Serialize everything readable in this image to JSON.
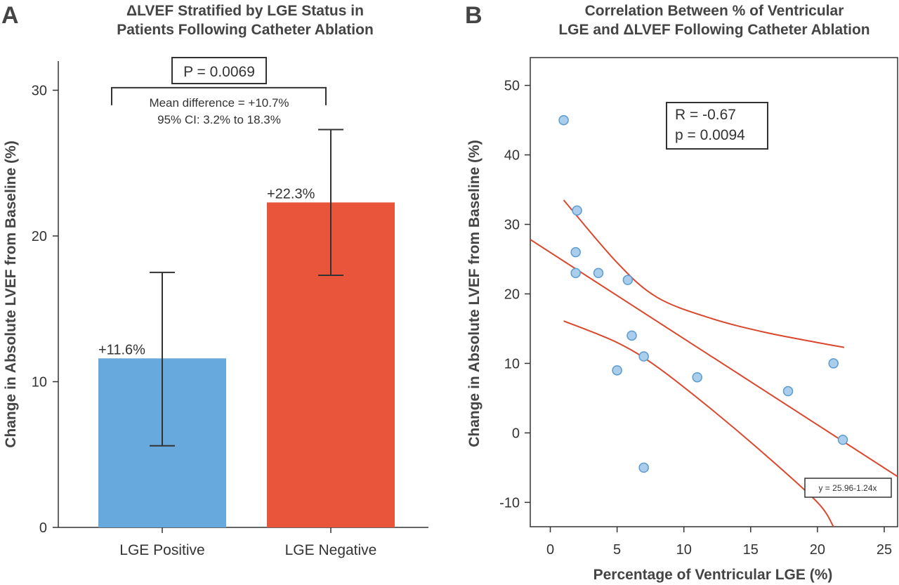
{
  "chart_data": [
    {
      "panel": "A",
      "type": "bar",
      "title": [
        "ΔLVEF Stratified by LGE Status in",
        "Patients Following Catheter Ablation"
      ],
      "ylabel": "Change in Absolute LVEF from Baseline (%)",
      "xlabel": "",
      "ylim": [
        0,
        32
      ],
      "yticks": [
        0,
        10,
        20,
        30
      ],
      "categories": [
        "LGE Positive",
        "LGE Negative"
      ],
      "values": [
        11.6,
        22.3
      ],
      "value_labels": [
        "+11.6%",
        "+22.3%"
      ],
      "error_bars": [
        {
          "low": 5.6,
          "high": 17.5
        },
        {
          "low": 17.3,
          "high": 27.3
        }
      ],
      "colors": [
        "#67a9dc",
        "#e8553b"
      ],
      "comparison": {
        "p_label": "P = 0.0069",
        "mean_difference": "Mean difference = +10.7%",
        "ci": "95% CI: 3.2% to 18.3%",
        "bracket_y": 30.8
      }
    },
    {
      "panel": "B",
      "type": "scatter",
      "title": [
        "Correlation Between % of Ventricular",
        "LGE and ΔLVEF Following Catheter Ablation"
      ],
      "xlabel": "Percentage of Ventricular LGE (%)",
      "ylabel": "Change in Absolute LVEF from Baseline (%)",
      "xlim": [
        -1.5,
        26
      ],
      "ylim": [
        -13.5,
        54
      ],
      "xticks": [
        0,
        5,
        10,
        15,
        20,
        25
      ],
      "yticks": [
        -10,
        0,
        10,
        20,
        30,
        40,
        50
      ],
      "points": [
        {
          "x": 1.0,
          "y": 45
        },
        {
          "x": 2.0,
          "y": 32
        },
        {
          "x": 1.9,
          "y": 26
        },
        {
          "x": 1.9,
          "y": 23
        },
        {
          "x": 3.6,
          "y": 23
        },
        {
          "x": 5.8,
          "y": 22
        },
        {
          "x": 6.1,
          "y": 14
        },
        {
          "x": 7.0,
          "y": 11
        },
        {
          "x": 5.0,
          "y": 9
        },
        {
          "x": 11.0,
          "y": 8
        },
        {
          "x": 7.0,
          "y": -5
        },
        {
          "x": 17.8,
          "y": 6
        },
        {
          "x": 21.2,
          "y": 10
        },
        {
          "x": 21.9,
          "y": -1
        }
      ],
      "point_color": "#a9cdeb",
      "point_edge_color": "#5a9bd0",
      "fit": {
        "intercept": 25.96,
        "slope": -1.24,
        "equation": "y = 25.96-1.24x"
      },
      "ci_upper": [
        [
          1.0,
          33.5
        ],
        [
          5.0,
          24.5
        ],
        [
          8.0,
          19.5
        ],
        [
          12.0,
          16.5
        ],
        [
          16.0,
          14.5
        ],
        [
          20.0,
          13.0
        ],
        [
          22.0,
          12.3
        ]
      ],
      "ci_lower": [
        [
          1.0,
          16.1
        ],
        [
          5.0,
          13.0
        ],
        [
          8.0,
          9.5
        ],
        [
          12.0,
          3.5
        ],
        [
          16.0,
          -3.0
        ],
        [
          20.0,
          -10.0
        ],
        [
          21.2,
          -13.5
        ]
      ],
      "line_color": "#d9472c",
      "stats": [
        "R = -0.67",
        "p = 0.0094"
      ]
    }
  ]
}
